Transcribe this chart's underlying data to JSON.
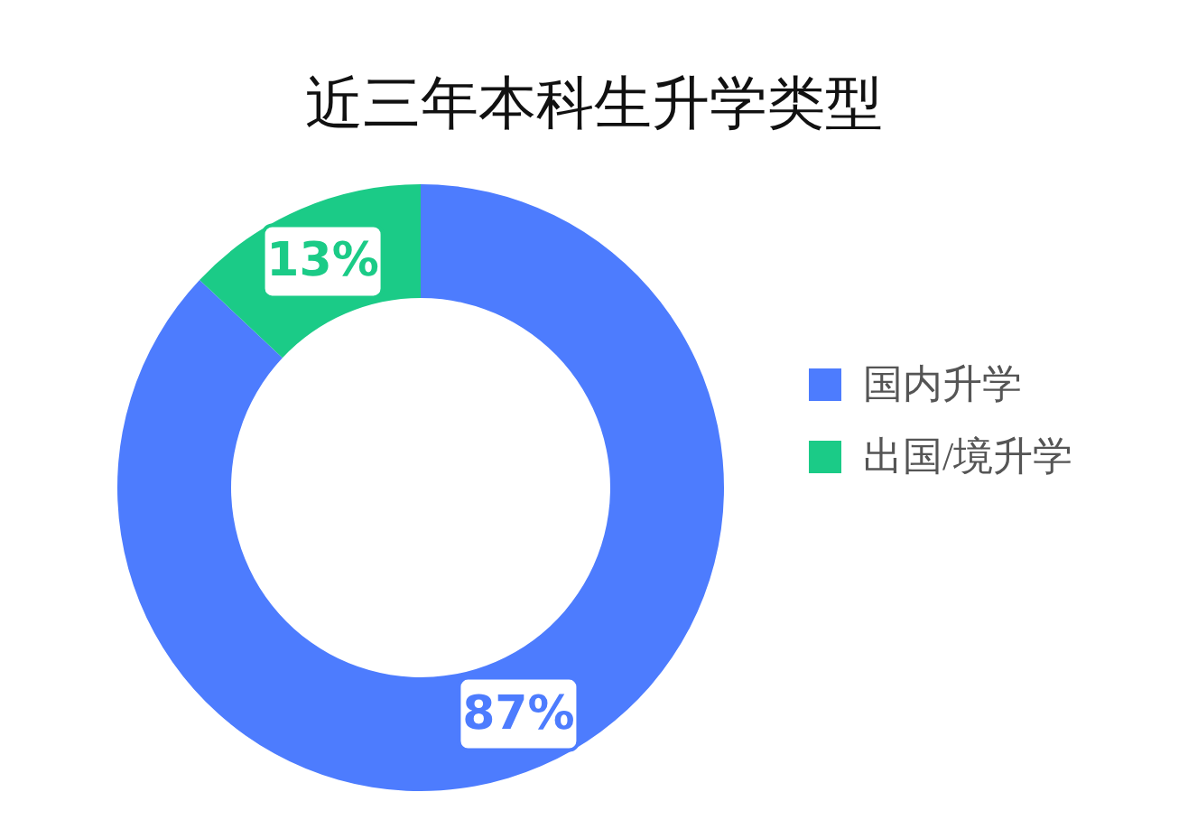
{
  "chart_data": {
    "type": "donut",
    "title": "近三年本科生升学类型",
    "categories": [
      "国内升学",
      "出国/境升学"
    ],
    "values": [
      87,
      13
    ],
    "colors": [
      "#4d7cfe",
      "#1bcb87"
    ],
    "value_labels": [
      "87%",
      "13%"
    ],
    "legend": "right"
  }
}
